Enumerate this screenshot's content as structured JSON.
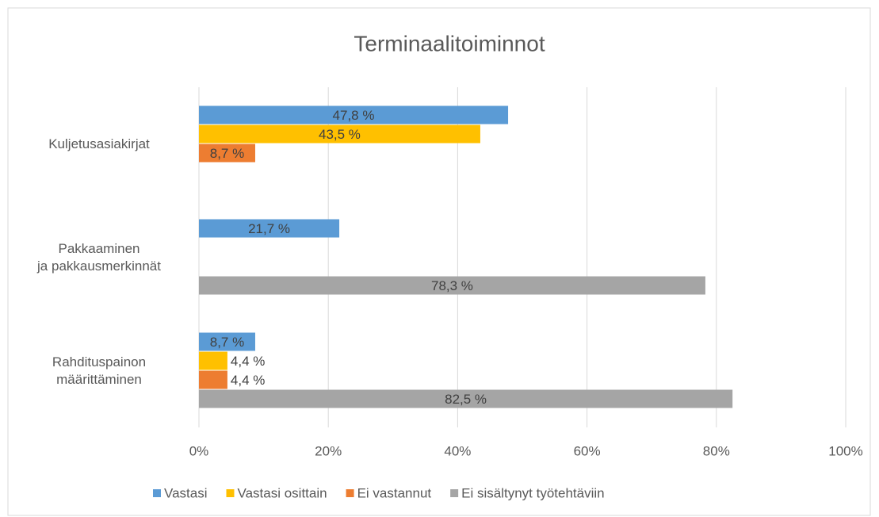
{
  "chart_data": {
    "type": "bar",
    "orientation": "horizontal",
    "title": "Terminaalitoiminnot",
    "categories": [
      "Kuljetusasiakirjat",
      "Pakkaaminen\nja pakkausmerkinnät",
      "Rahdituspainon\nmäärittäminen"
    ],
    "series": [
      {
        "name": "Vastasi",
        "color": "#5b9bd5",
        "values": [
          47.8,
          21.7,
          8.7
        ],
        "value_labels": [
          "47,8 %",
          "21,7 %",
          "8,7 %"
        ]
      },
      {
        "name": "Vastasi osittain",
        "color": "#ffc000",
        "values": [
          43.5,
          null,
          4.4
        ],
        "value_labels": [
          "43,5 %",
          null,
          "4,4 %"
        ]
      },
      {
        "name": "Ei vastannut",
        "color": "#ed7d31",
        "values": [
          8.7,
          null,
          4.4
        ],
        "value_labels": [
          "8,7 %",
          null,
          "4,4 %"
        ]
      },
      {
        "name": "Ei sisältynyt työtehtäviin",
        "color": "#a5a5a5",
        "values": [
          null,
          78.3,
          82.5
        ],
        "value_labels": [
          null,
          "78,3 %",
          "82,5 %"
        ]
      }
    ],
    "xlim": [
      0,
      100
    ],
    "xticks": [
      {
        "value": 0,
        "label": "0%"
      },
      {
        "value": 20,
        "label": "20%"
      },
      {
        "value": 40,
        "label": "40%"
      },
      {
        "value": 60,
        "label": "60%"
      },
      {
        "value": 80,
        "label": "80%"
      },
      {
        "value": 100,
        "label": "100%"
      }
    ],
    "grid": true,
    "legend": "bottom"
  }
}
